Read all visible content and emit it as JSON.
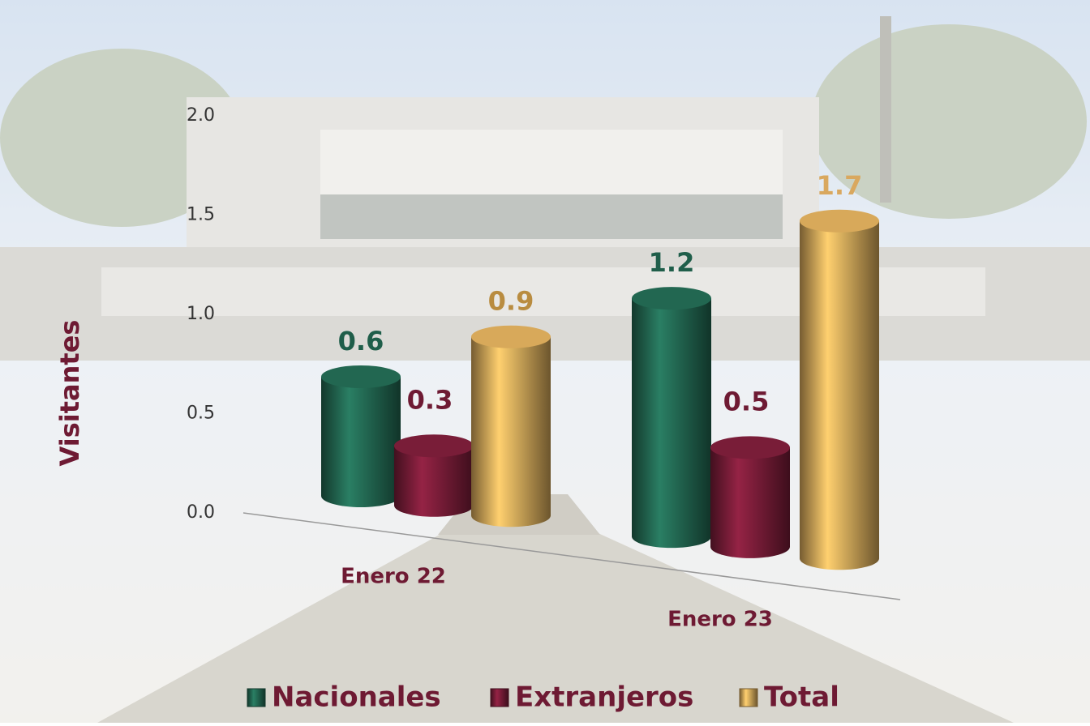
{
  "chart_data": {
    "type": "bar3d",
    "y_label": "Visitantes",
    "categories": [
      "Enero 22",
      "Enero 23"
    ],
    "series": [
      {
        "name": "Nacionales",
        "color": "#1f5e4a",
        "values": [
          0.6,
          1.2
        ]
      },
      {
        "name": "Extranjeros",
        "color": "#6e1a33",
        "values": [
          0.3,
          0.5
        ]
      },
      {
        "name": "Total",
        "color": "#c49a52",
        "values": [
          0.9,
          1.7
        ]
      }
    ],
    "ylim": [
      0,
      2
    ],
    "yticks": [
      {
        "value": 0,
        "label": "0.0"
      },
      0.5,
      {
        "value": 1,
        "label": "1.0"
      },
      1.5,
      {
        "value": 2,
        "label": "2.0"
      }
    ]
  }
}
